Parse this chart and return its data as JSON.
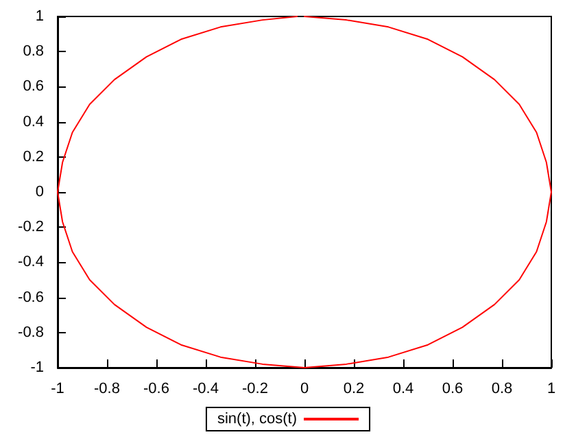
{
  "chart_data": {
    "type": "line",
    "series": [
      {
        "name": "sin(t), cos(t)",
        "color": "#ff0000",
        "x": [
          0,
          0.17,
          0.34,
          0.5,
          0.64,
          0.77,
          0.87,
          0.94,
          0.98,
          1,
          0.98,
          0.94,
          0.87,
          0.77,
          0.64,
          0.5,
          0.34,
          0.17,
          0,
          -0.17,
          -0.34,
          -0.5,
          -0.64,
          -0.77,
          -0.87,
          -0.94,
          -0.98,
          -1,
          -0.98,
          -0.94,
          -0.87,
          -0.77,
          -0.64,
          -0.5,
          -0.34,
          -0.17,
          -0.03
        ],
        "values": [
          1,
          0.98,
          0.94,
          0.87,
          0.77,
          0.64,
          0.5,
          0.34,
          0.17,
          0,
          -0.17,
          -0.34,
          -0.5,
          -0.64,
          -0.77,
          -0.87,
          -0.94,
          -0.98,
          -1,
          -0.98,
          -0.94,
          -0.87,
          -0.77,
          -0.64,
          -0.5,
          -0.34,
          -0.17,
          0,
          0.17,
          0.34,
          0.5,
          0.64,
          0.77,
          0.87,
          0.94,
          0.98,
          1
        ]
      }
    ],
    "xlim": [
      -1,
      1
    ],
    "ylim": [
      -1,
      1
    ],
    "xticks": [
      -1,
      -0.8,
      -0.6,
      -0.4,
      -0.2,
      0,
      0.2,
      0.4,
      0.6,
      0.8,
      1
    ],
    "yticks": [
      -1,
      -0.8,
      -0.6,
      -0.4,
      -0.2,
      0,
      0.2,
      0.4,
      0.6,
      0.8,
      1
    ],
    "grid": false,
    "legend": "bottom",
    "marker": "none",
    "line_style": "solid"
  }
}
